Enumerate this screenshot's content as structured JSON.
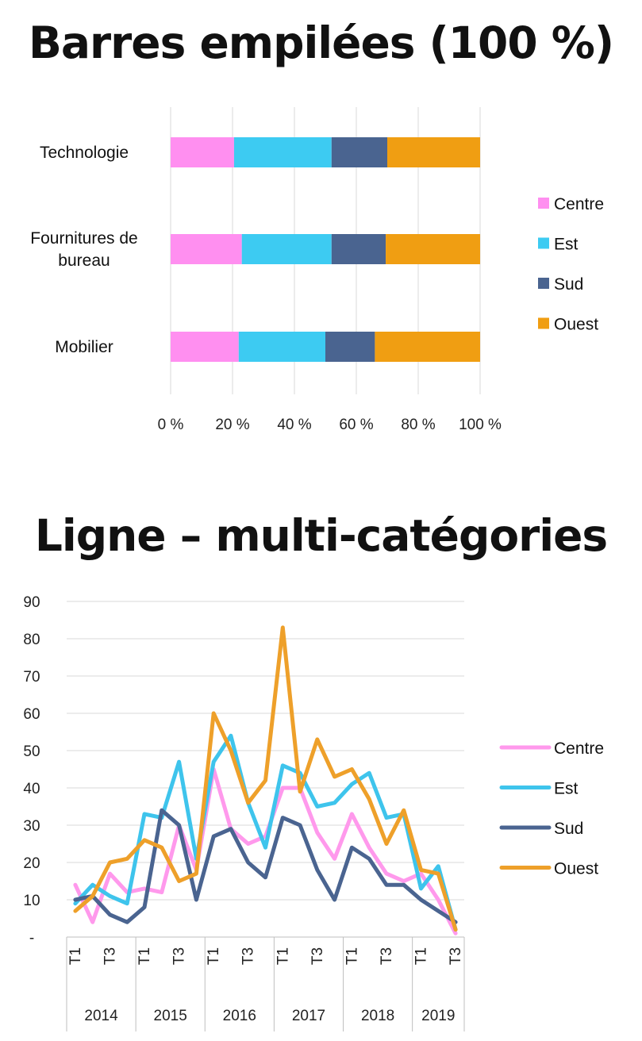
{
  "chart_data": [
    {
      "type": "bar",
      "orientation": "horizontal",
      "stacked": "percent",
      "title": "Barres empilées (100 %)",
      "categories": [
        "Technologie",
        "Fournitures de bureau",
        "Mobilier"
      ],
      "category_lines": [
        [
          "Technologie"
        ],
        [
          "Fournitures de",
          "bureau"
        ],
        [
          "Mobilier"
        ]
      ],
      "series": [
        {
          "name": "Centre",
          "color": "#FF8FF0",
          "values": [
            20.5,
            23,
            22
          ]
        },
        {
          "name": "Est",
          "color": "#3DCBF2",
          "values": [
            31.5,
            29,
            28
          ]
        },
        {
          "name": "Sud",
          "color": "#4A6490",
          "values": [
            18,
            17.5,
            16
          ]
        },
        {
          "name": "Ouest",
          "color": "#F09E12",
          "values": [
            30,
            30.5,
            34
          ]
        }
      ],
      "xlim": [
        0,
        100
      ],
      "xticks": [
        "0 %",
        "20 %",
        "40 %",
        "60 %",
        "80 %",
        "100 %"
      ],
      "grid": true,
      "legend": "right"
    },
    {
      "type": "line",
      "title": "Ligne – multi-catégories",
      "ylim": [
        0,
        90
      ],
      "yticks": [
        "-",
        "10",
        "20",
        "30",
        "40",
        "50",
        "60",
        "70",
        "80",
        "90"
      ],
      "x_quarter_labels": [
        "T1",
        "",
        "T3",
        "",
        "T1",
        "",
        "T3",
        "",
        "T1",
        "",
        "T3",
        "",
        "T1",
        "",
        "T3",
        "",
        "T1",
        "",
        "T3",
        "",
        "T1",
        "",
        "T3"
      ],
      "years": [
        {
          "label": "2014",
          "count": 4
        },
        {
          "label": "2015",
          "count": 4
        },
        {
          "label": "2016",
          "count": 4
        },
        {
          "label": "2017",
          "count": 4
        },
        {
          "label": "2018",
          "count": 4
        },
        {
          "label": "2019",
          "count": 3
        }
      ],
      "series": [
        {
          "name": "Centre",
          "color": "#FF99EC",
          "values": [
            14,
            4,
            17,
            12,
            13,
            12,
            30,
            18,
            45,
            29,
            25,
            27,
            40,
            40,
            28,
            21,
            33,
            24,
            17,
            15,
            17,
            10,
            1
          ]
        },
        {
          "name": "Est",
          "color": "#3EC4EC",
          "values": [
            9,
            14,
            11,
            9,
            33,
            32,
            47,
            21,
            47,
            54,
            36,
            24,
            46,
            44,
            35,
            36,
            41,
            44,
            32,
            33,
            13,
            19,
            2
          ]
        },
        {
          "name": "Sud",
          "color": "#4A6490",
          "values": [
            10,
            11,
            6,
            4,
            8,
            34,
            30,
            10,
            27,
            29,
            20,
            16,
            32,
            30,
            18,
            10,
            24,
            21,
            14,
            14,
            10,
            7,
            4
          ]
        },
        {
          "name": "Ouest",
          "color": "#EEA02A",
          "values": [
            7,
            11,
            20,
            21,
            26,
            24,
            15,
            17,
            60,
            50,
            36,
            42,
            83,
            39,
            53,
            43,
            45,
            37,
            25,
            34,
            18,
            17,
            2
          ]
        }
      ],
      "grid": true,
      "legend": "right"
    }
  ]
}
